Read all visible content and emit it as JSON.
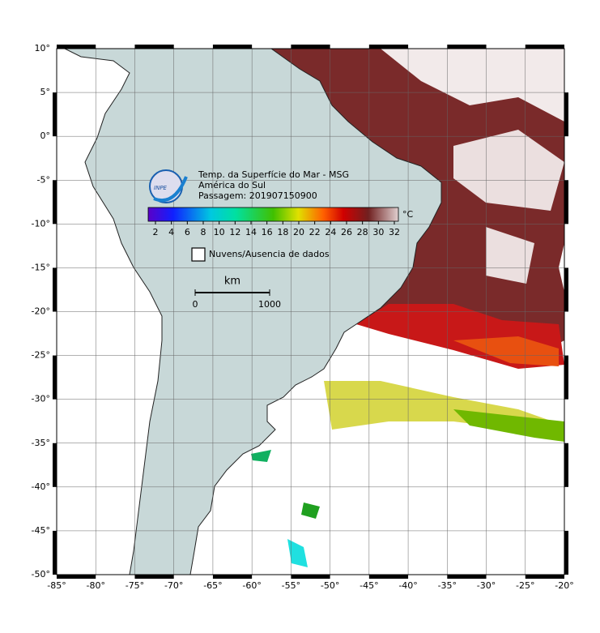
{
  "map": {
    "title": "Temp. da Superfície do Mar - MSG",
    "subtitle": "América do Sul",
    "pass": "Passagem: 201907150900",
    "logo": "INPE",
    "xticks": [
      {
        "value": -85,
        "label": "-85°"
      },
      {
        "value": -80,
        "label": "-80°"
      },
      {
        "value": -75,
        "label": "-75°"
      },
      {
        "value": -70,
        "label": "-70°"
      },
      {
        "value": -65,
        "label": "-65°"
      },
      {
        "value": -60,
        "label": "-60°"
      },
      {
        "value": -55,
        "label": "-55°"
      },
      {
        "value": -50,
        "label": "-50°"
      },
      {
        "value": -45,
        "label": "-45°"
      },
      {
        "value": -40,
        "label": "-40°"
      },
      {
        "value": -35,
        "label": "-35°"
      },
      {
        "value": -30,
        "label": "-30°"
      },
      {
        "value": -25,
        "label": "-25°"
      },
      {
        "value": -20,
        "label": "-20°"
      }
    ],
    "yticks": [
      {
        "value": 10,
        "label": "10°"
      },
      {
        "value": 5,
        "label": "5°"
      },
      {
        "value": 0,
        "label": "0°"
      },
      {
        "value": -5,
        "label": "-5°"
      },
      {
        "value": -10,
        "label": "-10°"
      },
      {
        "value": -15,
        "label": "-15°"
      },
      {
        "value": -20,
        "label": "-20°"
      },
      {
        "value": -25,
        "label": "-25°"
      },
      {
        "value": -30,
        "label": "-30°"
      },
      {
        "value": -35,
        "label": "-35°"
      },
      {
        "value": -40,
        "label": "-40°"
      },
      {
        "value": -45,
        "label": "-45°"
      },
      {
        "value": -50,
        "label": "-50°"
      }
    ],
    "colorbar": {
      "unit": "°C",
      "ticks": [
        2,
        4,
        6,
        8,
        10,
        12,
        14,
        16,
        18,
        20,
        22,
        24,
        26,
        28,
        30,
        32
      ]
    },
    "legend": "Nuvens/Ausencia de dados",
    "scale": {
      "unit": "km",
      "ticks": [
        0,
        1000
      ]
    }
  }
}
